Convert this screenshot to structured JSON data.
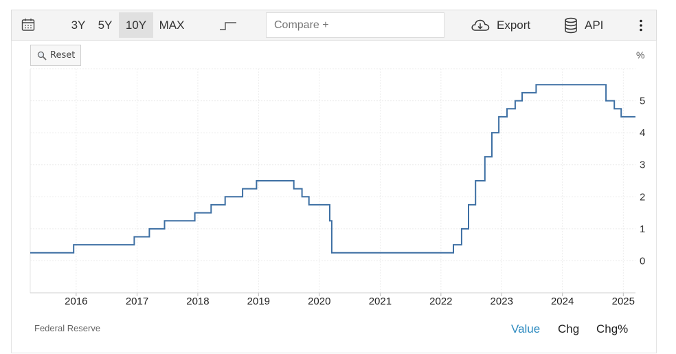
{
  "toolbar": {
    "calendar_icon": "calendar-icon",
    "ranges": [
      {
        "label": "3Y",
        "active": false
      },
      {
        "label": "5Y",
        "active": false
      },
      {
        "label": "10Y",
        "active": true
      },
      {
        "label": "MAX",
        "active": false
      }
    ],
    "chart_type_icon": "step-line-icon",
    "compare_placeholder": "Compare +",
    "export_label": "Export",
    "api_label": "API",
    "more_icon": "vertical-dots-icon"
  },
  "reset_label": "Reset",
  "source": "Federal Reserve",
  "metrics": [
    {
      "label": "Value",
      "active": true
    },
    {
      "label": "Chg",
      "active": false
    },
    {
      "label": "Chg%",
      "active": false
    }
  ],
  "chart_data": {
    "type": "line",
    "style": "step",
    "unit": "%",
    "title": "",
    "xlabel": "",
    "ylabel": "",
    "xlim": [
      "2015-03-31",
      "2025-03-15"
    ],
    "ylim": [
      -1,
      6
    ],
    "x_ticks": [
      "2016",
      "2017",
      "2018",
      "2019",
      "2020",
      "2021",
      "2022",
      "2023",
      "2024",
      "2025"
    ],
    "y_ticks": [
      0,
      1,
      2,
      3,
      4,
      5
    ],
    "grid": true,
    "line_color": "#3d6fa3",
    "series": [
      {
        "points": [
          [
            "2015-03-31",
            0.25
          ],
          [
            "2015-12-17",
            0.5
          ],
          [
            "2016-12-15",
            0.75
          ],
          [
            "2017-03-16",
            1.0
          ],
          [
            "2017-06-15",
            1.25
          ],
          [
            "2017-12-14",
            1.5
          ],
          [
            "2018-03-22",
            1.75
          ],
          [
            "2018-06-14",
            2.0
          ],
          [
            "2018-09-27",
            2.25
          ],
          [
            "2018-12-20",
            2.5
          ],
          [
            "2019-08-01",
            2.25
          ],
          [
            "2019-09-19",
            2.0
          ],
          [
            "2019-10-31",
            1.75
          ],
          [
            "2020-03-04",
            1.25
          ],
          [
            "2020-03-16",
            0.25
          ],
          [
            "2022-03-17",
            0.5
          ],
          [
            "2022-05-05",
            1.0
          ],
          [
            "2022-06-16",
            1.75
          ],
          [
            "2022-07-28",
            2.5
          ],
          [
            "2022-09-22",
            3.25
          ],
          [
            "2022-11-03",
            4.0
          ],
          [
            "2022-12-15",
            4.5
          ],
          [
            "2023-02-02",
            4.75
          ],
          [
            "2023-03-23",
            5.0
          ],
          [
            "2023-05-04",
            5.25
          ],
          [
            "2023-07-27",
            5.5
          ],
          [
            "2024-09-19",
            5.0
          ],
          [
            "2024-11-08",
            4.75
          ],
          [
            "2024-12-19",
            4.5
          ],
          [
            "2025-03-15",
            4.5
          ]
        ]
      }
    ]
  }
}
